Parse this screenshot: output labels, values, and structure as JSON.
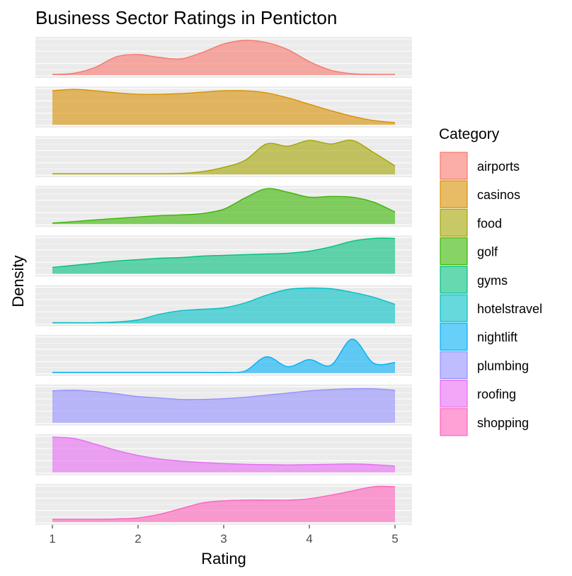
{
  "chart_data": {
    "type": "area",
    "title": "Business Sector Ratings in Penticton",
    "xlabel": "Rating",
    "ylabel": "Density",
    "xlim": [
      1,
      5
    ],
    "x_ticks": [
      1,
      2,
      3,
      4,
      5
    ],
    "grid": true,
    "facet": "stacked-rows",
    "legend": {
      "title": "Category",
      "placement": "right"
    },
    "x": [
      1.0,
      1.25,
      1.5,
      1.75,
      2.0,
      2.25,
      2.5,
      2.75,
      3.0,
      3.25,
      3.5,
      3.75,
      4.0,
      4.25,
      4.5,
      4.75,
      5.0
    ],
    "series": [
      {
        "name": "airports",
        "color": "#F8766D",
        "values": [
          0.02,
          0.05,
          0.22,
          0.52,
          0.58,
          0.5,
          0.46,
          0.64,
          0.88,
          0.98,
          0.92,
          0.72,
          0.38,
          0.14,
          0.04,
          0.02,
          0.02
        ]
      },
      {
        "name": "casinos",
        "color": "#D89000",
        "values": [
          0.96,
          1.0,
          0.96,
          0.9,
          0.86,
          0.86,
          0.88,
          0.92,
          0.96,
          0.96,
          0.9,
          0.76,
          0.58,
          0.4,
          0.24,
          0.12,
          0.06
        ]
      },
      {
        "name": "food",
        "color": "#A3A500",
        "values": [
          0.02,
          0.02,
          0.02,
          0.02,
          0.02,
          0.02,
          0.03,
          0.08,
          0.2,
          0.4,
          0.86,
          0.8,
          0.96,
          0.86,
          0.96,
          0.62,
          0.24
        ]
      },
      {
        "name": "golf",
        "color": "#39B600",
        "values": [
          0.03,
          0.07,
          0.12,
          0.16,
          0.2,
          0.24,
          0.26,
          0.3,
          0.42,
          0.74,
          1.0,
          0.9,
          0.76,
          0.78,
          0.76,
          0.62,
          0.34
        ]
      },
      {
        "name": "gyms",
        "color": "#00BF7D",
        "values": [
          0.18,
          0.24,
          0.3,
          0.36,
          0.4,
          0.44,
          0.46,
          0.5,
          0.52,
          0.54,
          0.56,
          0.58,
          0.64,
          0.76,
          0.92,
          1.0,
          1.0
        ]
      },
      {
        "name": "hotelstravel",
        "color": "#00BFC4",
        "values": [
          0.02,
          0.02,
          0.02,
          0.04,
          0.1,
          0.26,
          0.36,
          0.4,
          0.44,
          0.58,
          0.8,
          0.96,
          1.0,
          0.98,
          0.88,
          0.74,
          0.54
        ]
      },
      {
        "name": "nightlift",
        "color": "#00B0F6",
        "values": [
          0.02,
          0.02,
          0.02,
          0.02,
          0.02,
          0.02,
          0.02,
          0.02,
          0.02,
          0.06,
          0.46,
          0.18,
          0.38,
          0.22,
          0.96,
          0.28,
          0.3
        ]
      },
      {
        "name": "plumbing",
        "color": "#9590FF",
        "values": [
          0.9,
          0.92,
          0.88,
          0.82,
          0.74,
          0.7,
          0.66,
          0.66,
          0.68,
          0.72,
          0.78,
          0.84,
          0.9,
          0.94,
          0.96,
          0.96,
          0.92
        ]
      },
      {
        "name": "roofing",
        "color": "#E76BF3",
        "values": [
          1.0,
          0.96,
          0.8,
          0.62,
          0.48,
          0.38,
          0.32,
          0.28,
          0.25,
          0.23,
          0.22,
          0.21,
          0.22,
          0.23,
          0.24,
          0.22,
          0.18
        ]
      },
      {
        "name": "shopping",
        "color": "#FF62BC",
        "values": [
          0.08,
          0.08,
          0.08,
          0.09,
          0.12,
          0.22,
          0.38,
          0.54,
          0.6,
          0.62,
          0.62,
          0.62,
          0.66,
          0.76,
          0.88,
          1.0,
          1.0
        ]
      }
    ]
  }
}
